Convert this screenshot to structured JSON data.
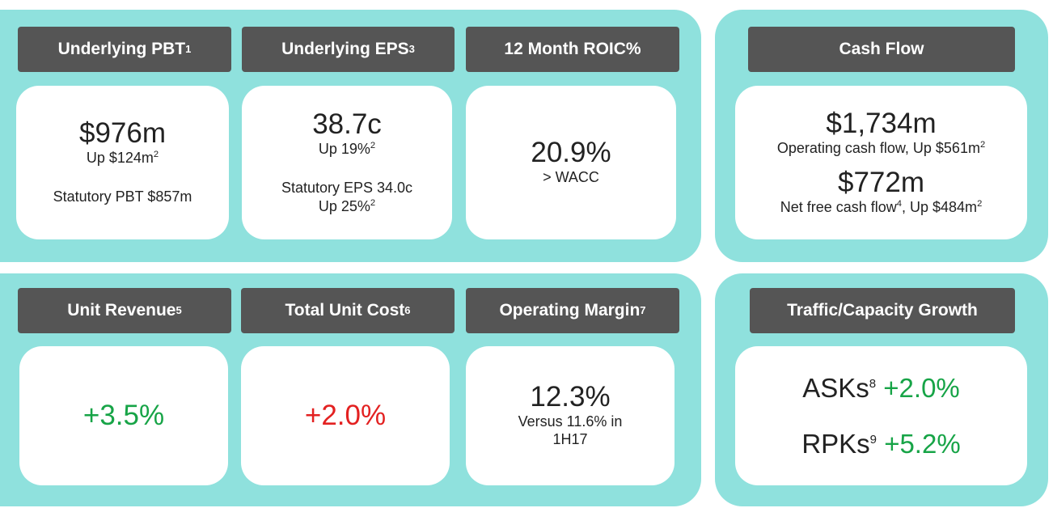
{
  "panels": {
    "pbt": {
      "title": "Underlying PBT",
      "title_sup": "1",
      "value": "$976m",
      "change": "Up $124m",
      "change_sup": "2",
      "statutory": "Statutory PBT $857m"
    },
    "eps": {
      "title": "Underlying EPS",
      "title_sup": "3",
      "value": "38.7c",
      "change": "Up 19%",
      "change_sup": "2",
      "statutory": "Statutory EPS 34.0c",
      "statutory_change": "Up 25%",
      "statutory_change_sup": "2"
    },
    "roic": {
      "title": "12 Month ROIC%",
      "value": "20.9%",
      "note": "> WACC"
    },
    "cash_flow": {
      "title": "Cash Flow",
      "operating_value": "$1,734m",
      "operating_label": "Operating cash flow, Up $561m",
      "operating_sup": "2",
      "net_value": "$772m",
      "net_label_a": "Net free cash flow",
      "net_label_sup_a": "4",
      "net_label_b": ", Up $484m",
      "net_label_sup_b": "2"
    },
    "unit_revenue": {
      "title": "Unit Revenue",
      "title_sup": "5",
      "value": "+3.5%"
    },
    "unit_cost": {
      "title": "Total Unit Cost",
      "title_sup": "6",
      "value": "+2.0%"
    },
    "operating_margin": {
      "title": "Operating Margin",
      "title_sup": "7",
      "value": "12.3%",
      "note": "Versus 11.6% in 1H17"
    },
    "traffic": {
      "title": "Traffic/Capacity Growth",
      "asks_label": "ASKs",
      "asks_sup": "8",
      "asks_value": "+2.0%",
      "rpks_label": "RPKs",
      "rpks_sup": "9",
      "rpks_value": "+5.2%"
    }
  },
  "colors": {
    "panel_bg": "#8fe1dd",
    "header_bg": "#555555",
    "positive": "#17a447",
    "negative": "#e32121"
  }
}
